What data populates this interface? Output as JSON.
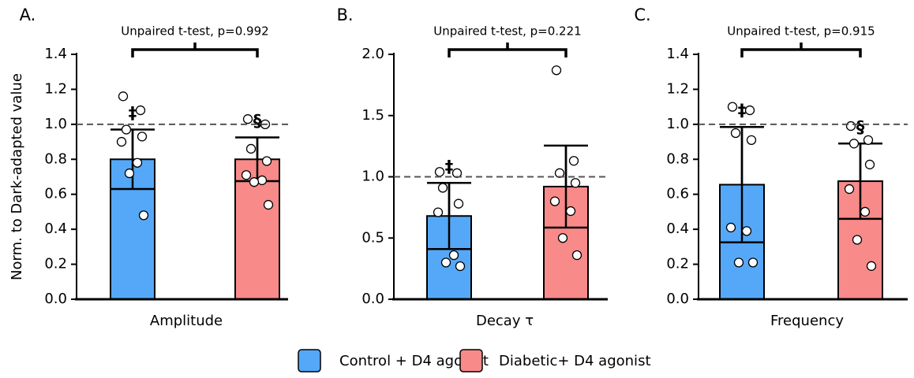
{
  "chart_data": [
    {
      "type": "bar",
      "panel_label": "A.",
      "annotation": "Unpaired t-test, p=0.992",
      "xlabel": "Amplitude",
      "ylabel": "Norm. to Dark-adapted value",
      "ylim": [
        0,
        1.4
      ],
      "yticks": [
        {
          "value": 0,
          "label": "0.0"
        },
        0.2,
        0.4,
        0.6,
        0.8,
        {
          "value": 1,
          "label": "1.0"
        },
        1.2,
        1.4
      ],
      "reference_line": 1,
      "series": [
        {
          "name": "Control + D4 agonist",
          "color": "#55a8f8",
          "values": [
            0.8
          ],
          "errors": [
            0.17
          ],
          "marker": "‡",
          "points": [
            1.16,
            1.08,
            0.97,
            0.93,
            0.9,
            0.78,
            0.72,
            0.48
          ]
        },
        {
          "name": "Diabetic+ D4 agonist",
          "color": "#f88a8a",
          "values": [
            0.8
          ],
          "errors": [
            0.125
          ],
          "marker": "§",
          "points": [
            1.03,
            1.0,
            0.86,
            0.79,
            0.71,
            0.68,
            0.67,
            0.54
          ]
        }
      ]
    },
    {
      "type": "bar",
      "panel_label": "B.",
      "annotation": "Unpaired t-test, p=0.221",
      "xlabel": "Decay τ",
      "ylim": [
        0,
        2
      ],
      "yticks": [
        {
          "value": 0,
          "label": "0.0"
        },
        0.5,
        {
          "value": 1,
          "label": "1.0"
        },
        1.5,
        {
          "value": 2,
          "label": "2.0"
        }
      ],
      "reference_line": 1,
      "series": [
        {
          "color": "#55a8f8",
          "values": [
            0.68
          ],
          "errors": [
            0.27
          ],
          "marker": "‡",
          "points": [
            1.04,
            1.03,
            0.91,
            0.78,
            0.71,
            0.36,
            0.3,
            0.27
          ]
        },
        {
          "color": "#f88a8a",
          "values": [
            0.92
          ],
          "errors": [
            0.335
          ],
          "points": [
            1.87,
            1.13,
            1.03,
            0.95,
            0.8,
            0.72,
            0.5,
            0.36
          ]
        }
      ]
    },
    {
      "type": "bar",
      "panel_label": "C.",
      "annotation": "Unpaired t-test, p=0.915",
      "xlabel": "Frequency",
      "ylim": [
        0,
        1.4
      ],
      "yticks": [
        {
          "value": 0,
          "label": "0.0"
        },
        0.2,
        0.4,
        0.6,
        0.8,
        {
          "value": 1,
          "label": "1.0"
        },
        1.2,
        1.4
      ],
      "reference_line": 1,
      "series": [
        {
          "color": "#55a8f8",
          "values": [
            0.655
          ],
          "errors": [
            0.33
          ],
          "marker": "‡",
          "points": [
            1.1,
            1.08,
            0.95,
            0.91,
            0.41,
            0.39,
            0.21,
            0.21
          ]
        },
        {
          "color": "#f88a8a",
          "values": [
            0.675
          ],
          "errors": [
            0.215
          ],
          "marker": "§",
          "points": [
            0.99,
            0.91,
            0.89,
            0.77,
            0.63,
            0.5,
            0.34,
            0.19
          ]
        }
      ]
    }
  ]
}
